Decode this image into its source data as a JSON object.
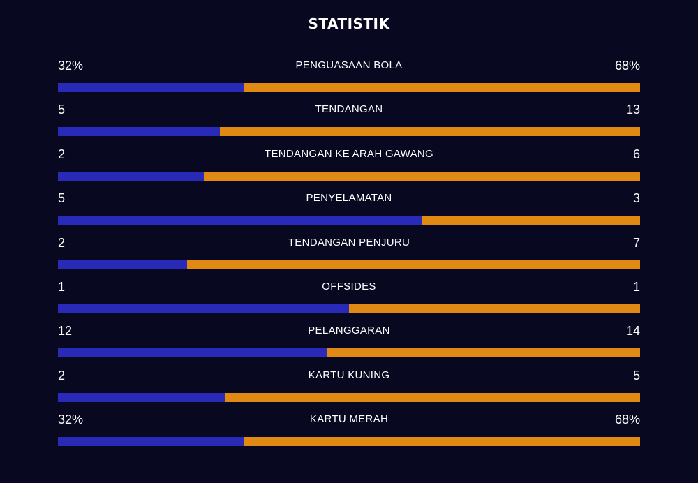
{
  "title": "STATISTIK",
  "colors": {
    "background": "#090821",
    "home": "#2a2ab8",
    "away": "#e08a14"
  },
  "stats": [
    {
      "label": "PENGUASAAN BOLA",
      "home": "32%",
      "away": "68%",
      "home_share": 0.32
    },
    {
      "label": "TENDANGAN",
      "home": "5",
      "away": "13",
      "home_share": 0.278
    },
    {
      "label": "TENDANGAN KE ARAH GAWANG",
      "home": "2",
      "away": "6",
      "home_share": 0.25
    },
    {
      "label": "PENYELAMATAN",
      "home": "5",
      "away": "3",
      "home_share": 0.625
    },
    {
      "label": "TENDANGAN PENJURU",
      "home": "2",
      "away": "7",
      "home_share": 0.222
    },
    {
      "label": "OFFSIDES",
      "home": "1",
      "away": "1",
      "home_share": 0.5
    },
    {
      "label": "PELANGGARAN",
      "home": "12",
      "away": "14",
      "home_share": 0.462
    },
    {
      "label": "KARTU KUNING",
      "home": "2",
      "away": "5",
      "home_share": 0.286
    },
    {
      "label": "KARTU MERAH",
      "home": "32%",
      "away": "68%",
      "home_share": 0.32
    }
  ]
}
